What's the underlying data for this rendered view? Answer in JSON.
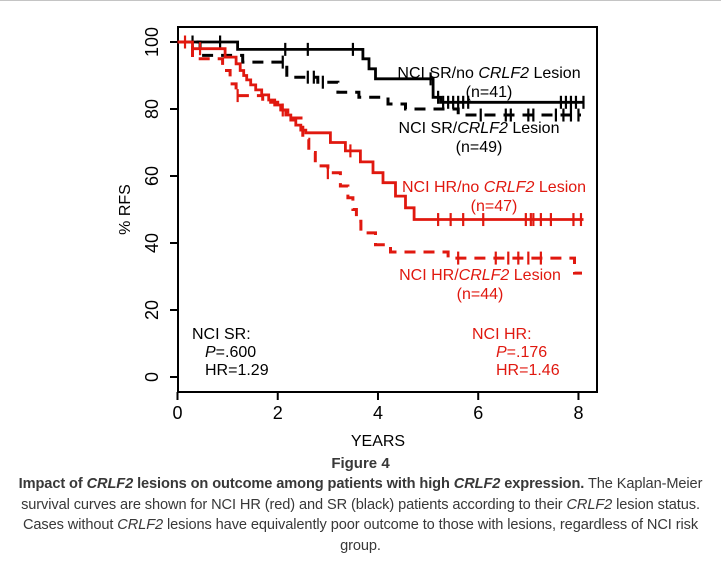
{
  "colors": {
    "black": "#000000",
    "red": "#e0180f",
    "caption_text": "#383838",
    "top_rule": "#c4c4c4"
  },
  "chart_data": {
    "type": "line",
    "subtype": "kaplan-meier-step",
    "title": "",
    "xlabel": "YEARS",
    "ylabel": "% RFS",
    "xlim": [
      0,
      8.4
    ],
    "ylim": [
      0,
      100
    ],
    "x_ticks": [
      0,
      2,
      4,
      6,
      8
    ],
    "y_ticks": [
      0,
      20,
      40,
      60,
      80,
      100
    ],
    "grid": false,
    "legend_position": "inline-annotations",
    "series": [
      {
        "name": "NCI SR/no CRLF2 Lesion",
        "n": 41,
        "color": "#000000",
        "dash": "solid",
        "points": [
          [
            0,
            100
          ],
          [
            1.2,
            97.8
          ],
          [
            3.7,
            95
          ],
          [
            3.82,
            92
          ],
          [
            3.95,
            89
          ],
          [
            5.1,
            83.5
          ],
          [
            5.25,
            82
          ],
          [
            8.12,
            82
          ]
        ],
        "censor_times": [
          0.3,
          0.85,
          2.15,
          2.6,
          3.5,
          5.05,
          5.2,
          5.3,
          5.4,
          5.5,
          5.6,
          5.7,
          5.8,
          7.65,
          7.75,
          7.85,
          7.95,
          8.1
        ]
      },
      {
        "name": "NCI SR/CRLF2 Lesion",
        "n": 49,
        "color": "#000000",
        "dash": "dashed",
        "points": [
          [
            0,
            100
          ],
          [
            0.45,
            96
          ],
          [
            1.3,
            94
          ],
          [
            2.18,
            89.5
          ],
          [
            2.8,
            88
          ],
          [
            3.2,
            85
          ],
          [
            3.62,
            83.5
          ],
          [
            4.2,
            81.5
          ],
          [
            4.55,
            80
          ],
          [
            5.6,
            78.2
          ],
          [
            8.05,
            78.2
          ]
        ],
        "censor_times": [
          2.1,
          2.6,
          2.72,
          2.9,
          6.05,
          6.55,
          6.65,
          7.0,
          7.1,
          7.55,
          7.7,
          7.85,
          8.0
        ]
      },
      {
        "name": "NCI HR/no CRLF2 Lesion",
        "n": 47,
        "color": "#e0180f",
        "dash": "solid",
        "points": [
          [
            0,
            100
          ],
          [
            0.3,
            98
          ],
          [
            0.95,
            95.5
          ],
          [
            1.17,
            93.5
          ],
          [
            1.25,
            91.5
          ],
          [
            1.32,
            90
          ],
          [
            1.38,
            88.7
          ],
          [
            1.46,
            87.2
          ],
          [
            1.56,
            85.7
          ],
          [
            1.68,
            84.2
          ],
          [
            1.82,
            82.7
          ],
          [
            1.94,
            81.2
          ],
          [
            2.06,
            79.7
          ],
          [
            2.16,
            78.2
          ],
          [
            2.26,
            76.7
          ],
          [
            2.36,
            75.2
          ],
          [
            2.46,
            73.7
          ],
          [
            2.56,
            72.9
          ],
          [
            3.05,
            70
          ],
          [
            3.35,
            67.5
          ],
          [
            3.65,
            64.2
          ],
          [
            3.9,
            61
          ],
          [
            4.1,
            58
          ],
          [
            4.35,
            54
          ],
          [
            4.55,
            50.5
          ],
          [
            4.72,
            47
          ],
          [
            8.1,
            47
          ]
        ],
        "censor_times": [
          0.15,
          0.45,
          2.1,
          3.45,
          5.2,
          5.45,
          5.7,
          6.1,
          6.95,
          7.05,
          7.1,
          7.25,
          7.45,
          7.9,
          8.05
        ]
      },
      {
        "name": "NCI HR/CRLF2 Lesion",
        "n": 44,
        "color": "#e0180f",
        "dash": "dashed",
        "points": [
          [
            0,
            100
          ],
          [
            0.3,
            95
          ],
          [
            0.9,
            91.5
          ],
          [
            1.05,
            87.5
          ],
          [
            1.17,
            84
          ],
          [
            1.7,
            82
          ],
          [
            2.0,
            79.7
          ],
          [
            2.2,
            77.3
          ],
          [
            2.5,
            71
          ],
          [
            2.62,
            67
          ],
          [
            2.75,
            63
          ],
          [
            3.0,
            61
          ],
          [
            3.25,
            57
          ],
          [
            3.4,
            53.5
          ],
          [
            3.5,
            50
          ],
          [
            3.57,
            46.5
          ],
          [
            3.66,
            43
          ],
          [
            3.95,
            39.5
          ],
          [
            4.25,
            37.3
          ],
          [
            5.4,
            35.5
          ],
          [
            7.9,
            35.5
          ],
          [
            7.92,
            31
          ],
          [
            8.07,
            31
          ]
        ],
        "censor_times": [
          1.2,
          3.0,
          5.6,
          6.35,
          6.6,
          6.8,
          7.0,
          7.25
        ]
      }
    ],
    "annotations": [
      "NCI SR: P=.600 HR=1.29",
      "NCI HR: P=.176 HR=1.46"
    ]
  },
  "labels": {
    "sr_no": {
      "pre": "NCI SR/no ",
      "gene": "CRLF2",
      "post": " Lesion",
      "n": "(n=41)"
    },
    "sr_les": {
      "pre": "NCI SR/",
      "gene": "CRLF2",
      "post": " Lesion",
      "n": "(n=49)"
    },
    "hr_no": {
      "pre": "NCI HR/no ",
      "gene": "CRLF2",
      "post": " Lesion",
      "n": "(n=47)"
    },
    "hr_les": {
      "pre": "NCI HR/",
      "gene": "CRLF2",
      "post": " Lesion",
      "n": "(n=44)"
    }
  },
  "stats": {
    "sr": {
      "title": "NCI SR:",
      "p_sym": "P",
      "p_val": "=.600",
      "hr": "HR=1.29"
    },
    "hr": {
      "title": "NCI HR:",
      "p_sym": "P",
      "p_val": "=.176",
      "hr": "HR=1.46"
    }
  },
  "caption": {
    "figure": "Figure 4",
    "segments": [
      {
        "t": "Impact of ",
        "b": 1
      },
      {
        "t": "CRLF2",
        "b": 1,
        "i": 1
      },
      {
        "t": " lesions on outcome among patients with high ",
        "b": 1
      },
      {
        "t": "CRLF2",
        "b": 1,
        "i": 1
      },
      {
        "t": " expression.",
        "b": 1
      },
      {
        "t": " The Kaplan-Meier survival curves are shown for NCI HR (red) and SR (black) patients according to their "
      },
      {
        "t": "CRLF2",
        "i": 1
      },
      {
        "t": " lesion status. Cases without "
      },
      {
        "t": "CRLF2",
        "i": 1
      },
      {
        "t": " lesions have equivalently poor outcome to those with lesions, regardless of NCI risk group."
      }
    ]
  }
}
